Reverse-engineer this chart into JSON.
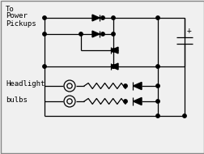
{
  "bg_color": "#f0f0f0",
  "line_color": "#000000",
  "dot_color": "#000000",
  "text_color": "#000000",
  "border_color": "#888888",
  "fig_width": 2.53,
  "fig_height": 1.9,
  "dpi": 100,
  "title_text1": "To",
  "title_text2": "Power",
  "title_text3": "Pickups",
  "label_text1": "Headlight",
  "label_text2": "bulbs",
  "plus_sign": "+"
}
